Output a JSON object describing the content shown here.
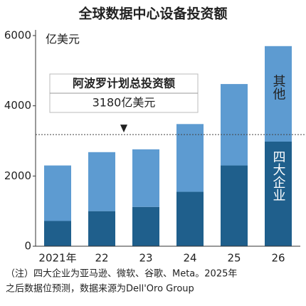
{
  "chart_data": {
    "type": "stacked_bar",
    "title": "全球数据中心设备投资额",
    "y_unit": "亿美元",
    "categories": [
      "2021年",
      "22",
      "23",
      "24",
      "25",
      "26"
    ],
    "series": [
      {
        "name": "四大企业",
        "color": "#1f5f8c",
        "values": [
          720,
          1000,
          1120,
          1550,
          2300,
          2980
        ]
      },
      {
        "name": "其他",
        "color": "#5d9bd1",
        "values": [
          1580,
          1680,
          1640,
          1930,
          2320,
          2720
        ]
      }
    ],
    "ylim": [
      0,
      6000
    ],
    "yticks": [
      0,
      2000,
      4000,
      6000
    ],
    "reference_line": {
      "value": 3180,
      "title": "阿波罗计划总投资额",
      "label": "3180亿美元"
    },
    "note": [
      "（注）四大企业为亚马逊、微软、谷歌、Meta。2025年",
      "之后数据位预测，数据来源为Dell'Oro Group"
    ]
  }
}
